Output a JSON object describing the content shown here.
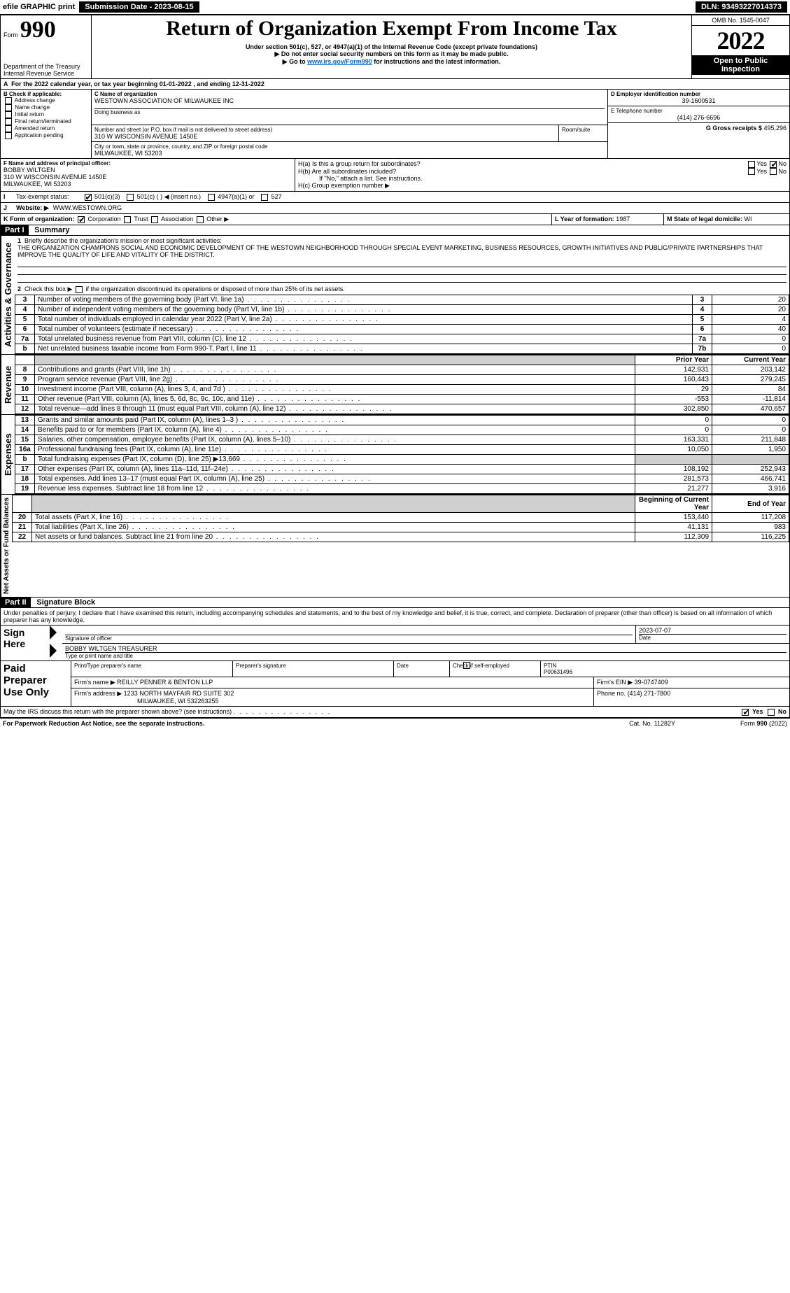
{
  "header": {
    "efile": "efile GRAPHIC print",
    "submission": "Submission Date - 2023-08-15",
    "dln": "DLN: 93493227014373",
    "form_prefix": "Form",
    "form_number": "990",
    "title": "Return of Organization Exempt From Income Tax",
    "subtitle": "Under section 501(c), 527, or 4947(a)(1) of the Internal Revenue Code (except private foundations)",
    "warning": "▶ Do not enter social security numbers on this form as it may be made public.",
    "goto": "▶ Go to www.irs.gov/Form990 for instructions and the latest information.",
    "goto_prefix": "▶ Go to ",
    "goto_link": "www.irs.gov/Form990",
    "goto_suffix": " for instructions and the latest information.",
    "dept": "Department of the Treasury",
    "irs": "Internal Revenue Service",
    "omb": "OMB No. 1545-0047",
    "year": "2022",
    "open": "Open to Public Inspection"
  },
  "lineA": "For the 2022 calendar year, or tax year beginning 01-01-2022    , and ending 12-31-2022",
  "boxB": {
    "label": "B Check if applicable:",
    "items": [
      "Address change",
      "Name change",
      "Initial return",
      "Final return/terminated",
      "Amended return",
      "Application pending"
    ]
  },
  "boxC": {
    "name_label": "C Name of organization",
    "name": "WESTOWN ASSOCIATION OF MILWAUKEE INC",
    "dba_label": "Doing business as",
    "street_label": "Number and street (or P.O. box if mail is not delivered to street address)",
    "room_label": "Room/suite",
    "street": "310 W WISCONSIN AVENUE 1450E",
    "city_label": "City or town, state or province, country, and ZIP or foreign postal code",
    "city": "MILWAUKEE, WI  53203"
  },
  "boxD": {
    "label": "D Employer identification number",
    "value": "39-1600531"
  },
  "boxE": {
    "label": "E Telephone number",
    "value": "(414) 276-6696"
  },
  "boxG": {
    "label": "G Gross receipts $",
    "value": "495,296"
  },
  "boxF": {
    "label": "F  Name and address of principal officer:",
    "name": "BOBBY WILTGEN",
    "street": "310 W WISCONSIN AVENUE 1450E",
    "city": "MILWAUKEE, WI  53203"
  },
  "boxH": {
    "a": "H(a)  Is this a group return for subordinates?",
    "b": "H(b)  Are all subordinates included?",
    "b_note": "If \"No,\" attach a list. See instructions.",
    "c": "H(c)  Group exemption number ▶",
    "yes": "Yes",
    "no": "No"
  },
  "lineI": {
    "label": "Tax-exempt status:",
    "opts": [
      "501(c)(3)",
      "501(c) (  ) ◀ (insert no.)",
      "4947(a)(1) or",
      "527"
    ]
  },
  "lineJ": {
    "label": "Website: ▶",
    "value": "WWW.WESTOWN.ORG"
  },
  "lineK": {
    "label": "K Form of organization:",
    "opts": [
      "Corporation",
      "Trust",
      "Association",
      "Other ▶"
    ]
  },
  "lineL": {
    "label": "L Year of formation:",
    "value": "1987"
  },
  "lineM": {
    "label": "M State of legal domicile:",
    "value": "WI"
  },
  "part1": {
    "title": "Part I",
    "subtitle": "Summary",
    "side_gov": "Activities & Governance",
    "side_rev": "Revenue",
    "side_exp": "Expenses",
    "side_net": "Net Assets or Fund Balances",
    "l1": "Briefly describe the organization's mission or most significant activities:",
    "mission": "THE ORGANIZATION CHAMPIONS SOCIAL AND ECONOMIC DEVELOPMENT OF THE WESTOWN NEIGHBORHOOD THROUGH SPECIAL EVENT MARKETING, BUSINESS RESOURCES, GROWTH INITIATIVES AND PUBLIC/PRIVATE PARTNERSHIPS THAT IMPROVE THE QUALITY OF LIFE AND VITALITY OF THE DISTRICT.",
    "l2": "Check this box ▶       if the organization discontinued its operations or disposed of more than 25% of its net assets.",
    "rows_gov": [
      {
        "n": "3",
        "t": "Number of voting members of the governing body (Part VI, line 1a)",
        "c": "3",
        "v": "20"
      },
      {
        "n": "4",
        "t": "Number of independent voting members of the governing body (Part VI, line 1b)",
        "c": "4",
        "v": "20"
      },
      {
        "n": "5",
        "t": "Total number of individuals employed in calendar year 2022 (Part V, line 2a)",
        "c": "5",
        "v": "4"
      },
      {
        "n": "6",
        "t": "Total number of volunteers (estimate if necessary)",
        "c": "6",
        "v": "40"
      },
      {
        "n": "7a",
        "t": "Total unrelated business revenue from Part VIII, column (C), line 12",
        "c": "7a",
        "v": "0"
      },
      {
        "n": "b",
        "t": "Net unrelated business taxable income from Form 990-T, Part I, line 11",
        "c": "7b",
        "v": "0"
      }
    ],
    "col_prior": "Prior Year",
    "col_current": "Current Year",
    "col_begin": "Beginning of Current Year",
    "col_end": "End of Year",
    "rows_rev": [
      {
        "n": "8",
        "t": "Contributions and grants (Part VIII, line 1h)",
        "p": "142,931",
        "c": "203,142"
      },
      {
        "n": "9",
        "t": "Program service revenue (Part VIII, line 2g)",
        "p": "160,443",
        "c": "279,245"
      },
      {
        "n": "10",
        "t": "Investment income (Part VIII, column (A), lines 3, 4, and 7d )",
        "p": "29",
        "c": "84"
      },
      {
        "n": "11",
        "t": "Other revenue (Part VIII, column (A), lines 5, 6d, 8c, 9c, 10c, and 11e)",
        "p": "-553",
        "c": "-11,814"
      },
      {
        "n": "12",
        "t": "Total revenue—add lines 8 through 11 (must equal Part VIII, column (A), line 12)",
        "p": "302,850",
        "c": "470,657"
      }
    ],
    "rows_exp": [
      {
        "n": "13",
        "t": "Grants and similar amounts paid (Part IX, column (A), lines 1–3 )",
        "p": "0",
        "c": "0"
      },
      {
        "n": "14",
        "t": "Benefits paid to or for members (Part IX, column (A), line 4)",
        "p": "0",
        "c": "0"
      },
      {
        "n": "15",
        "t": "Salaries, other compensation, employee benefits (Part IX, column (A), lines 5–10)",
        "p": "163,331",
        "c": "211,848"
      },
      {
        "n": "16a",
        "t": "Professional fundraising fees (Part IX, column (A), line 11e)",
        "p": "10,050",
        "c": "1,950"
      },
      {
        "n": "b",
        "t": "Total fundraising expenses (Part IX, column (D), line 25) ▶13,669",
        "p": "",
        "c": "",
        "shade": true
      },
      {
        "n": "17",
        "t": "Other expenses (Part IX, column (A), lines 11a–11d, 11f–24e)",
        "p": "108,192",
        "c": "252,943"
      },
      {
        "n": "18",
        "t": "Total expenses. Add lines 13–17 (must equal Part IX, column (A), line 25)",
        "p": "281,573",
        "c": "466,741"
      },
      {
        "n": "19",
        "t": "Revenue less expenses. Subtract line 18 from line 12",
        "p": "21,277",
        "c": "3,916"
      }
    ],
    "rows_net": [
      {
        "n": "20",
        "t": "Total assets (Part X, line 16)",
        "p": "153,440",
        "c": "117,208"
      },
      {
        "n": "21",
        "t": "Total liabilities (Part X, line 26)",
        "p": "41,131",
        "c": "983"
      },
      {
        "n": "22",
        "t": "Net assets or fund balances. Subtract line 21 from line 20",
        "p": "112,309",
        "c": "116,225"
      }
    ]
  },
  "part2": {
    "title": "Part II",
    "subtitle": "Signature Block",
    "jurat": "Under penalties of perjury, I declare that I have examined this return, including accompanying schedules and statements, and to the best of my knowledge and belief, it is true, correct, and complete. Declaration of preparer (other than officer) is based on all information of which preparer has any knowledge.",
    "sign_here": "Sign Here",
    "sig_officer": "Signature of officer",
    "date": "Date",
    "date_val": "2023-07-07",
    "officer_name": "BOBBY WILTGEN  TREASURER",
    "type_name": "Type or print name and title",
    "paid": "Paid Preparer Use Only",
    "pp_name": "Print/Type preparer's name",
    "pp_sig": "Preparer's signature",
    "pp_date": "Date",
    "pp_check": "Check         if self-employed",
    "ptin_label": "PTIN",
    "ptin": "P00631496",
    "firm_name_label": "Firm's name      ▶",
    "firm_name": "REILLY PENNER & BENTON LLP",
    "firm_ein_label": "Firm's EIN ▶",
    "firm_ein": "39-0747409",
    "firm_addr_label": "Firm's address ▶",
    "firm_addr1": "1233 NORTH MAYFAIR RD SUITE 302",
    "firm_addr2": "MILWAUKEE, WI  532263255",
    "phone_label": "Phone no.",
    "phone": "(414) 271-7800",
    "discuss": "May the IRS discuss this return with the preparer shown above? (see instructions)",
    "yes": "Yes",
    "no": "No"
  },
  "footer": {
    "left": "For Paperwork Reduction Act Notice, see the separate instructions.",
    "mid": "Cat. No. 11282Y",
    "right": "Form 990 (2022)"
  }
}
